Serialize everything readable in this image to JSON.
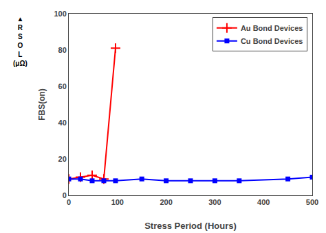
{
  "chart_data": {
    "type": "line",
    "xlabel": "Stress Period (Hours)",
    "ylabel": "FBS(on)",
    "annotations": [
      "▲\nR\nS\nO\nL\n(μΩ)"
    ],
    "series": [
      {
        "name": "Au Bond Devices",
        "color": "#ff0000",
        "marker": "cross",
        "x": [
          0,
          24,
          48,
          72,
          96
        ],
        "values": [
          9,
          10,
          11,
          9,
          81
        ]
      },
      {
        "name": "Cu Bond Devices",
        "color": "#0000ff",
        "marker": "square",
        "x": [
          0,
          24,
          48,
          72,
          96,
          150,
          200,
          250,
          300,
          350,
          450,
          500
        ],
        "values": [
          9,
          9,
          8,
          8,
          8,
          9,
          8,
          8,
          8,
          8,
          9,
          10
        ]
      }
    ],
    "xlim": [
      0,
      500
    ],
    "ylim": [
      0,
      100
    ],
    "xticks": [
      0,
      100,
      200,
      300,
      400,
      500
    ],
    "yticks": [
      0,
      20,
      40,
      60,
      80,
      100
    ],
    "grid": false,
    "legend": "upper right"
  }
}
